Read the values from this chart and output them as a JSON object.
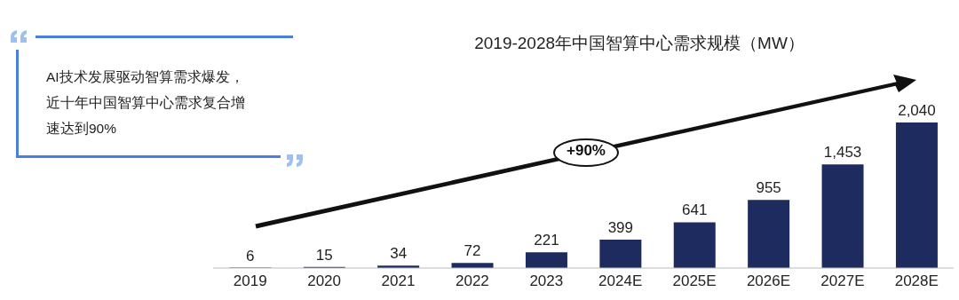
{
  "chart_data": {
    "type": "bar",
    "title": "2019-2028年中国智算中心需求规模（MW）",
    "categories": [
      "2019",
      "2020",
      "2021",
      "2022",
      "2023",
      "2024E",
      "2025E",
      "2026E",
      "2027E",
      "2028E"
    ],
    "values": [
      6,
      15,
      34,
      72,
      221,
      399,
      641,
      955,
      1453,
      2040
    ],
    "value_labels": [
      "6",
      "15",
      "34",
      "72",
      "221",
      "399",
      "641",
      "955",
      "1,453",
      "2,040"
    ],
    "color": "#1e2b5e",
    "grid": false,
    "legend": false,
    "annotations": [
      "AI技术发展驱动智算需求爆发，近十年中国智算中心需求复合增速达到90%",
      "+90%"
    ]
  }
}
